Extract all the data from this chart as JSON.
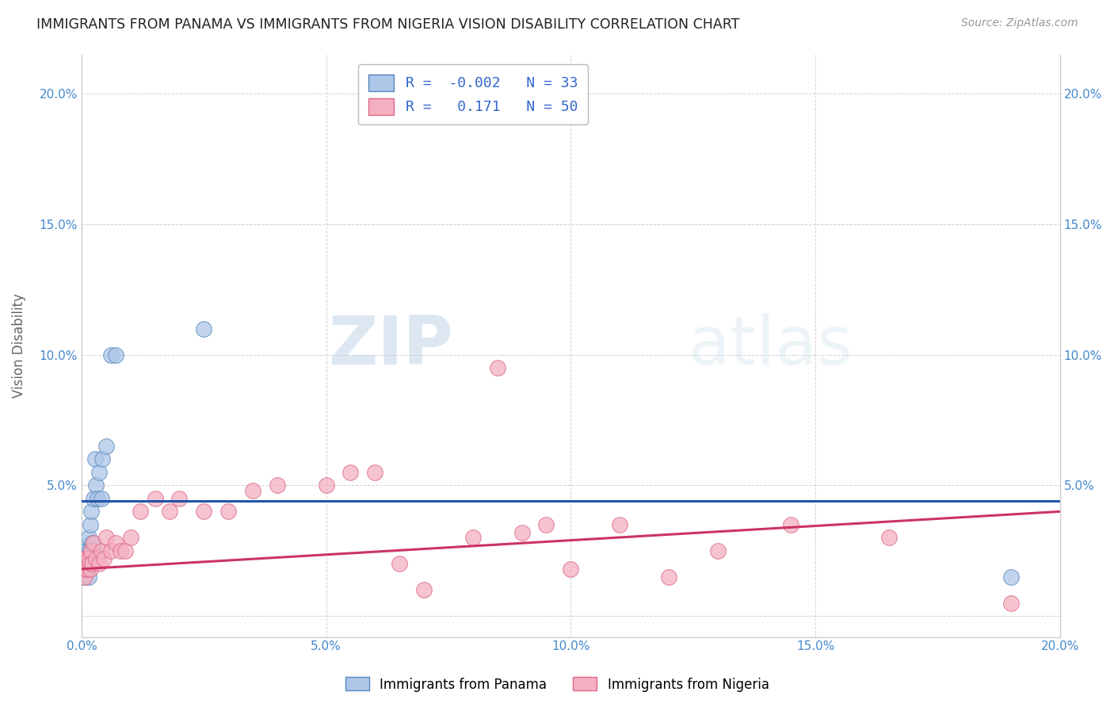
{
  "title": "IMMIGRANTS FROM PANAMA VS IMMIGRANTS FROM NIGERIA VISION DISABILITY CORRELATION CHART",
  "source": "Source: ZipAtlas.com",
  "ylabel": "Vision Disability",
  "xlim": [
    0.0,
    0.2
  ],
  "ylim": [
    -0.008,
    0.215
  ],
  "panama_color": "#aec6e8",
  "nigeria_color": "#f4b0c0",
  "panama_edge_color": "#5588bb",
  "nigeria_edge_color": "#dd6688",
  "trendline_panama_color": "#2255aa",
  "trendline_nigeria_color": "#cc3366",
  "panama_R": -0.002,
  "panama_N": 33,
  "nigeria_R": 0.171,
  "nigeria_N": 50,
  "panama_label": "Immigrants from Panama",
  "nigeria_label": "Immigrants from Nigeria",
  "background_color": "#ffffff",
  "grid_color": "#cccccc",
  "axis_color": "#4488cc",
  "panama_trend_y0": 0.044,
  "panama_trend_y1": 0.044,
  "nigeria_trend_y0": 0.018,
  "nigeria_trend_y1": 0.04,
  "panama_x": [
    0.0002,
    0.0003,
    0.0004,
    0.0005,
    0.0006,
    0.0007,
    0.0008,
    0.0009,
    0.001,
    0.001,
    0.0012,
    0.0013,
    0.0014,
    0.0015,
    0.0016,
    0.0017,
    0.0018,
    0.002,
    0.002,
    0.0022,
    0.0024,
    0.0025,
    0.0028,
    0.003,
    0.0032,
    0.0035,
    0.004,
    0.0042,
    0.005,
    0.006,
    0.007,
    0.025,
    0.19
  ],
  "panama_y": [
    0.02,
    0.018,
    0.022,
    0.015,
    0.02,
    0.018,
    0.025,
    0.02,
    0.025,
    0.018,
    0.02,
    0.022,
    0.015,
    0.03,
    0.025,
    0.02,
    0.035,
    0.022,
    0.04,
    0.028,
    0.025,
    0.045,
    0.06,
    0.05,
    0.045,
    0.055,
    0.045,
    0.06,
    0.065,
    0.1,
    0.1,
    0.11,
    0.015
  ],
  "nigeria_x": [
    0.0002,
    0.0003,
    0.0004,
    0.0005,
    0.0006,
    0.0007,
    0.0008,
    0.0009,
    0.001,
    0.0012,
    0.0014,
    0.0016,
    0.0018,
    0.002,
    0.0022,
    0.0025,
    0.003,
    0.0035,
    0.004,
    0.0045,
    0.005,
    0.006,
    0.007,
    0.008,
    0.009,
    0.01,
    0.012,
    0.015,
    0.018,
    0.02,
    0.025,
    0.03,
    0.035,
    0.04,
    0.05,
    0.055,
    0.06,
    0.065,
    0.07,
    0.08,
    0.085,
    0.09,
    0.1,
    0.095,
    0.11,
    0.12,
    0.13,
    0.145,
    0.165,
    0.19
  ],
  "nigeria_y": [
    0.018,
    0.02,
    0.022,
    0.018,
    0.02,
    0.015,
    0.022,
    0.018,
    0.02,
    0.018,
    0.022,
    0.02,
    0.018,
    0.025,
    0.02,
    0.028,
    0.022,
    0.02,
    0.025,
    0.022,
    0.03,
    0.025,
    0.028,
    0.025,
    0.025,
    0.03,
    0.04,
    0.045,
    0.04,
    0.045,
    0.04,
    0.04,
    0.048,
    0.05,
    0.05,
    0.055,
    0.055,
    0.02,
    0.01,
    0.03,
    0.095,
    0.032,
    0.018,
    0.035,
    0.035,
    0.015,
    0.025,
    0.035,
    0.03,
    0.005
  ]
}
